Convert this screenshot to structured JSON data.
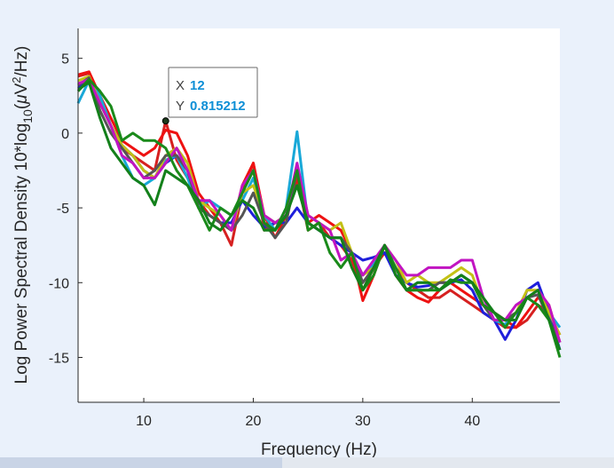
{
  "chart_data": {
    "type": "line",
    "xlabel": "Frequency (Hz)",
    "ylabel": "Log Power Spectral Density 10*log10(μV²/Hz)",
    "ylabel_parts": {
      "main": "Log Power Spectral Density 10*log",
      "sub": "10",
      "open": "(",
      "mu": "μ",
      "v": "V",
      "sup": "2",
      "tail": "/Hz)"
    },
    "xlim": [
      4,
      48
    ],
    "ylim": [
      -18,
      7
    ],
    "xticks": [
      10,
      20,
      30,
      40
    ],
    "yticks": [
      5,
      0,
      -5,
      -10,
      -15
    ],
    "grid": false,
    "x": [
      4,
      5,
      6,
      7,
      8,
      9,
      10,
      11,
      12,
      13,
      14,
      15,
      16,
      17,
      18,
      19,
      20,
      21,
      22,
      23,
      24,
      25,
      26,
      27,
      28,
      29,
      30,
      31,
      32,
      33,
      34,
      35,
      36,
      37,
      38,
      39,
      40,
      41,
      42,
      43,
      44,
      45,
      46,
      47,
      48
    ],
    "series": [
      {
        "color": "#d62020",
        "values": [
          3.8,
          4.0,
          2.0,
          0.5,
          -1.0,
          -1.5,
          -2.0,
          -2.5,
          0.815212,
          -1.8,
          -3.0,
          -4.5,
          -5.5,
          -6.0,
          -7.5,
          -4.0,
          -2.0,
          -6.5,
          -6.0,
          -5.5,
          -3.0,
          -6.5,
          -6.0,
          -7.0,
          -7.5,
          -8.5,
          -10.5,
          -9.0,
          -8.0,
          -9.0,
          -10.0,
          -10.5,
          -11.0,
          -11.0,
          -10.5,
          -11.0,
          -11.5,
          -12.0,
          -12.5,
          -13.0,
          -13.0,
          -12.5,
          -11.5,
          -12.0,
          -13.5
        ]
      },
      {
        "color": "#ee1111",
        "values": [
          3.9,
          4.1,
          2.5,
          1.0,
          -0.5,
          -1.0,
          -1.5,
          -1.0,
          0.2,
          0.0,
          -1.5,
          -4.0,
          -5.0,
          -6.0,
          -6.5,
          -3.5,
          -2.0,
          -5.5,
          -7.0,
          -5.5,
          -3.0,
          -6.0,
          -5.5,
          -6.0,
          -6.5,
          -8.0,
          -11.2,
          -9.5,
          -7.5,
          -9.5,
          -10.5,
          -11.0,
          -11.3,
          -10.5,
          -10.0,
          -10.5,
          -11.0,
          -11.5,
          -12.0,
          -12.5,
          -13.0,
          -12.0,
          -11.0,
          -11.5,
          -14.0
        ]
      },
      {
        "color": "#1f1fdb",
        "values": [
          3.0,
          3.5,
          2.0,
          0.5,
          -0.8,
          -1.5,
          -2.5,
          -3.0,
          -2.0,
          -1.5,
          -2.5,
          -5.0,
          -5.5,
          -6.0,
          -6.0,
          -4.5,
          -5.5,
          -6.3,
          -6.0,
          -6.0,
          -5.0,
          -6.0,
          -6.5,
          -7.0,
          -7.5,
          -8.0,
          -8.5,
          -8.3,
          -8.0,
          -9.5,
          -10.0,
          -10.3,
          -10.2,
          -10.0,
          -10.0,
          -9.8,
          -10.5,
          -12.0,
          -12.5,
          -13.8,
          -12.5,
          -10.5,
          -10.0,
          -12.0,
          -14.5
        ]
      },
      {
        "color": "#19a8d8",
        "values": [
          2.0,
          3.5,
          2.5,
          0.5,
          -1.5,
          -3.0,
          -3.5,
          -3.0,
          -1.8,
          -1.5,
          -3.0,
          -5.0,
          -4.5,
          -5.0,
          -5.5,
          -4.5,
          -3.0,
          -5.5,
          -6.5,
          -5.0,
          0.1,
          -6.0,
          -6.5,
          -7.0,
          -7.0,
          -8.0,
          -9.5,
          -8.8,
          -7.5,
          -9.0,
          -10.5,
          -10.0,
          -10.0,
          -10.5,
          -10.0,
          -9.5,
          -10.0,
          -11.0,
          -12.5,
          -12.8,
          -12.0,
          -11.0,
          -10.8,
          -12.0,
          -13.0
        ]
      },
      {
        "color": "#c3c115",
        "values": [
          3.5,
          3.8,
          2.0,
          0.5,
          -0.8,
          -1.5,
          -2.5,
          -3.0,
          -1.5,
          -1.0,
          -2.0,
          -4.5,
          -5.0,
          -5.5,
          -6.5,
          -4.0,
          -3.5,
          -5.5,
          -6.0,
          -5.5,
          -2.5,
          -5.5,
          -6.0,
          -6.5,
          -6.0,
          -8.0,
          -9.5,
          -9.0,
          -7.5,
          -8.5,
          -10.0,
          -9.5,
          -10.0,
          -10.0,
          -9.5,
          -9.0,
          -9.5,
          -11.5,
          -12.5,
          -12.5,
          -12.0,
          -10.5,
          -10.5,
          -12.0,
          -13.5
        ]
      },
      {
        "color": "#555555",
        "values": [
          3.2,
          3.7,
          1.5,
          0.0,
          -1.0,
          -2.0,
          -3.0,
          -2.5,
          -1.5,
          -1.5,
          -2.5,
          -5.0,
          -5.5,
          -6.0,
          -6.5,
          -5.5,
          -4.0,
          -6.0,
          -7.0,
          -6.0,
          -2.5,
          -6.0,
          -6.5,
          -7.0,
          -7.0,
          -8.0,
          -10.0,
          -9.0,
          -7.5,
          -9.0,
          -10.5,
          -10.5,
          -10.5,
          -10.0,
          -10.0,
          -9.5,
          -10.0,
          -11.5,
          -12.5,
          -12.5,
          -12.0,
          -11.0,
          -10.8,
          -12.5,
          -14.0
        ]
      },
      {
        "color": "#c114c1",
        "values": [
          3.3,
          3.6,
          2.0,
          0.5,
          -1.5,
          -2.0,
          -3.0,
          -3.0,
          -2.0,
          -1.0,
          -2.5,
          -4.5,
          -4.5,
          -5.5,
          -6.5,
          -3.5,
          -2.5,
          -5.5,
          -6.0,
          -5.5,
          -2.0,
          -5.5,
          -6.0,
          -6.5,
          -8.5,
          -8.0,
          -9.5,
          -8.5,
          -7.5,
          -8.5,
          -9.5,
          -9.5,
          -9.0,
          -9.0,
          -9.0,
          -8.5,
          -8.5,
          -11.0,
          -12.5,
          -12.5,
          -11.5,
          -11.0,
          -10.5,
          -11.5,
          -14.0
        ]
      },
      {
        "color": "#1a8a1a",
        "values": [
          2.8,
          3.6,
          2.8,
          1.8,
          -0.5,
          0.0,
          -0.5,
          -0.5,
          -1.0,
          -2.5,
          -3.5,
          -5.0,
          -6.5,
          -5.0,
          -5.5,
          -4.0,
          -2.5,
          -6.0,
          -6.5,
          -5.0,
          -2.5,
          -6.5,
          -6.0,
          -8.0,
          -9.0,
          -8.0,
          -10.5,
          -9.5,
          -7.5,
          -9.0,
          -10.5,
          -10.5,
          -10.5,
          -10.5,
          -9.8,
          -10.0,
          -10.0,
          -11.5,
          -12.0,
          -13.0,
          -12.0,
          -11.0,
          -11.5,
          -12.5,
          -15.0
        ]
      },
      {
        "color": "#13801a",
        "values": [
          2.9,
          3.4,
          1.0,
          -1.0,
          -2.0,
          -3.0,
          -3.5,
          -4.8,
          -2.5,
          -3.0,
          -3.5,
          -4.5,
          -6.0,
          -6.5,
          -5.5,
          -4.5,
          -5.0,
          -6.5,
          -6.5,
          -5.5,
          -3.5,
          -6.0,
          -6.5,
          -7.0,
          -7.0,
          -9.0,
          -10.5,
          -9.0,
          -7.5,
          -9.5,
          -10.5,
          -10.0,
          -10.0,
          -10.5,
          -10.0,
          -9.5,
          -10.0,
          -11.0,
          -12.0,
          -12.5,
          -12.5,
          -11.0,
          -10.5,
          -12.5,
          -14.5
        ]
      }
    ]
  },
  "datatip": {
    "x_label": "X",
    "x_value": "12",
    "y_label": "Y",
    "y_value": "0.815212",
    "value_color": "#0e8fd6"
  },
  "colors": {
    "axes_bg": "#ffffff",
    "figure_bg": "#eaf1fb",
    "axis": "#262626"
  }
}
